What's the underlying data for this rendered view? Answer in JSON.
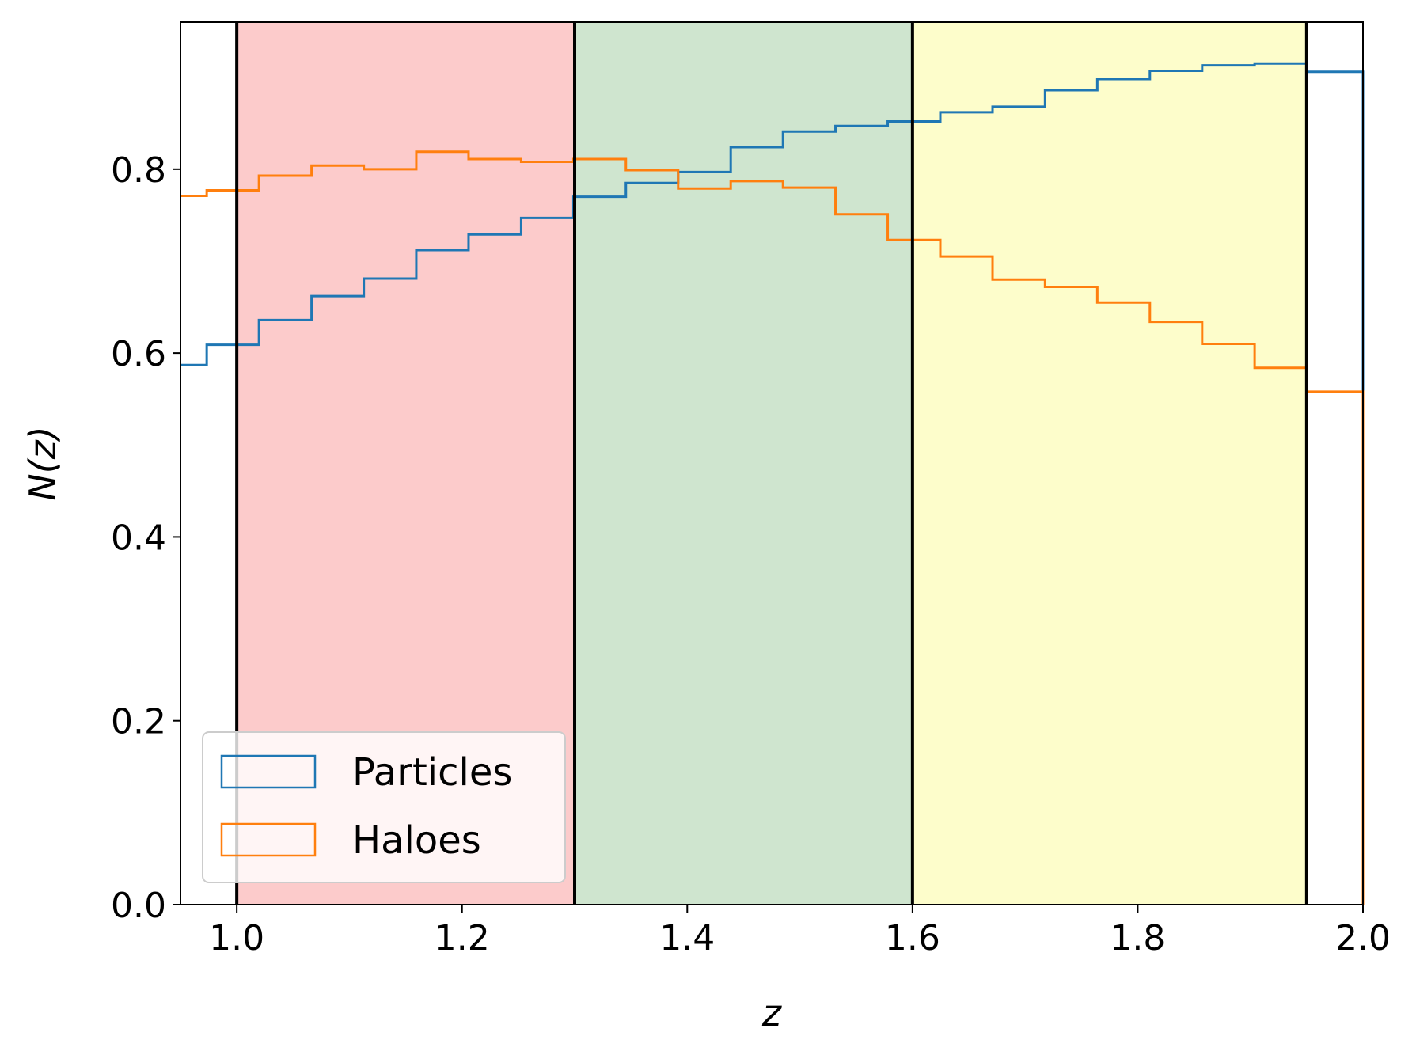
{
  "chart_data": {
    "type": "histogram-step",
    "xlabel": "z",
    "ylabel": "N(z)",
    "xlim": [
      0.95,
      2.0
    ],
    "ylim": [
      0.0,
      0.96
    ],
    "x_ticks": [
      "1.0",
      "1.2",
      "1.4",
      "1.6",
      "1.8",
      "2.0"
    ],
    "x_tick_values": [
      1.0,
      1.2,
      1.4,
      1.6,
      1.8,
      2.0
    ],
    "y_ticks": [
      "0.0",
      "0.2",
      "0.4",
      "0.6",
      "0.8"
    ],
    "y_tick_values": [
      0.0,
      0.2,
      0.4,
      0.6,
      0.8
    ],
    "regions": [
      {
        "x0": 1.0,
        "x1": 1.3,
        "color": "#fccbcb"
      },
      {
        "x0": 1.3,
        "x1": 1.6,
        "color": "#cfe5cf"
      },
      {
        "x0": 1.6,
        "x1": 1.95,
        "color": "#fdfdcb"
      }
    ],
    "vlines": [
      1.0,
      1.3,
      1.6,
      1.95
    ],
    "bin_edges": [
      0.95,
      0.9733,
      1.0197,
      1.0664,
      1.1128,
      1.1594,
      1.2058,
      1.2525,
      1.2989,
      1.3455,
      1.3919,
      1.4386,
      1.485,
      1.5316,
      1.578,
      1.6247,
      1.6711,
      1.7177,
      1.7641,
      1.8108,
      1.8572,
      1.9038,
      1.9502,
      2.0
    ],
    "series": [
      {
        "name": "Particles",
        "color": "#1f77b4",
        "values": [
          0.587,
          0.609,
          0.636,
          0.662,
          0.681,
          0.712,
          0.729,
          0.747,
          0.77,
          0.785,
          0.797,
          0.824,
          0.841,
          0.847,
          0.852,
          0.862,
          0.868,
          0.886,
          0.898,
          0.907,
          0.913,
          0.915,
          0.906
        ]
      },
      {
        "name": "Haloes",
        "color": "#ff7f0e",
        "values": [
          0.771,
          0.777,
          0.793,
          0.804,
          0.8,
          0.819,
          0.811,
          0.808,
          0.811,
          0.799,
          0.779,
          0.787,
          0.78,
          0.751,
          0.723,
          0.705,
          0.68,
          0.672,
          0.655,
          0.634,
          0.61,
          0.584,
          0.558
        ]
      }
    ],
    "legend_position": "lower-left"
  }
}
